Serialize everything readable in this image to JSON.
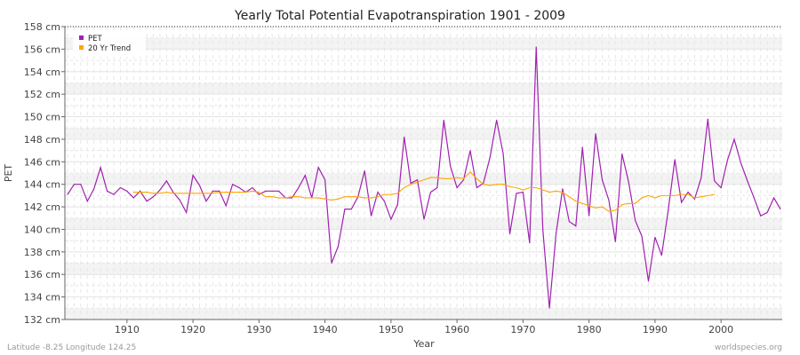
{
  "chart_data": {
    "type": "line",
    "title": "Yearly Total Potential Evapotranspiration 1901 - 2009",
    "xlabel": "Year",
    "ylabel": "PET",
    "xlim": [
      1901,
      2009
    ],
    "ylim": [
      132,
      158
    ],
    "xticks": [
      1910,
      1920,
      1930,
      1940,
      1950,
      1960,
      1970,
      1980,
      1990,
      2000
    ],
    "yticks": [
      132,
      134,
      136,
      138,
      140,
      142,
      144,
      146,
      148,
      150,
      152,
      154,
      156,
      158
    ],
    "ytick_unit": "cm",
    "grid": true,
    "legend": "top-left",
    "series": [
      {
        "name": "PET",
        "color": "#a020b0",
        "x_start": 1901,
        "values": [
          143.1,
          144.0,
          144.0,
          142.5,
          143.6,
          145.5,
          143.4,
          143.1,
          143.7,
          143.4,
          142.8,
          143.4,
          142.5,
          142.9,
          143.5,
          144.3,
          143.3,
          142.6,
          141.5,
          144.8,
          143.9,
          142.5,
          143.4,
          143.4,
          142.1,
          144.0,
          143.7,
          143.3,
          143.7,
          143.1,
          143.4,
          143.4,
          143.4,
          142.8,
          142.8,
          143.7,
          144.8,
          142.8,
          145.5,
          144.4,
          137.0,
          138.5,
          141.8,
          141.8,
          142.9,
          145.2,
          141.2,
          143.3,
          142.5,
          140.9,
          142.2,
          148.2,
          144.1,
          144.4,
          140.9,
          143.3,
          143.7,
          149.7,
          145.6,
          143.7,
          144.4,
          147.0,
          143.7,
          144.1,
          146.4,
          149.7,
          146.7,
          139.6,
          143.2,
          143.3,
          138.8,
          156.2,
          140.0,
          133.0,
          139.6,
          143.6,
          140.7,
          140.3,
          147.3,
          141.2,
          148.5,
          144.4,
          142.6,
          138.9,
          146.7,
          144.2,
          140.8,
          139.4,
          135.4,
          139.3,
          137.7,
          141.7,
          146.2,
          142.4,
          143.3,
          142.7,
          144.6,
          149.8,
          144.3,
          143.7,
          146.2,
          148.0,
          145.9,
          144.3,
          142.8,
          141.2,
          141.5,
          142.8,
          141.8
        ]
      },
      {
        "name": "20 Yr Trend",
        "color": "#ffa500",
        "x_start": 1911,
        "values": [
          143.3,
          143.3,
          143.3,
          143.2,
          143.2,
          143.3,
          143.2,
          143.2,
          143.2,
          143.2,
          143.2,
          143.2,
          143.2,
          143.3,
          143.3,
          143.3,
          143.3,
          143.3,
          143.4,
          143.3,
          142.9,
          142.9,
          142.8,
          142.8,
          142.9,
          142.9,
          142.8,
          142.8,
          142.8,
          142.7,
          142.6,
          142.7,
          142.9,
          142.9,
          142.9,
          142.8,
          142.8,
          142.9,
          143.1,
          143.1,
          143.2,
          143.7,
          144.0,
          144.2,
          144.4,
          144.6,
          144.6,
          144.5,
          144.5,
          144.6,
          144.5,
          145.1,
          144.5,
          144.0,
          143.9,
          144.0,
          144.0,
          143.8,
          143.7,
          143.5,
          143.7,
          143.7,
          143.5,
          143.3,
          143.4,
          143.3,
          142.9,
          142.5,
          142.3,
          142.1,
          141.9,
          142.0,
          141.6,
          141.7,
          142.2,
          142.3,
          142.3,
          142.8,
          143.0,
          142.8,
          143.0,
          143.0,
          143.0,
          143.1,
          143.1,
          142.8,
          142.9,
          143.0,
          143.1
        ]
      }
    ]
  },
  "footer": {
    "left": "Latitude -8.25 Longitude 124.25",
    "right": "worldspecies.org"
  }
}
